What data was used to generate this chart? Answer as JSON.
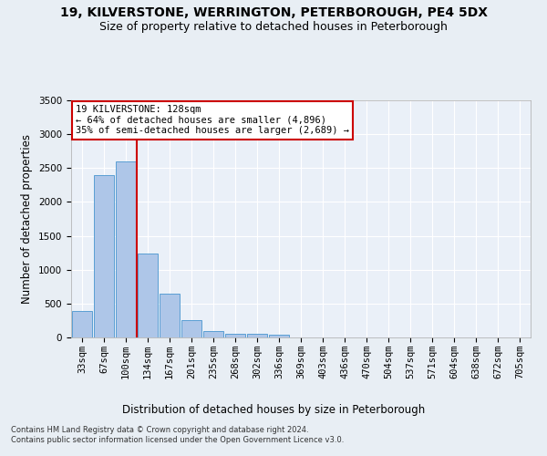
{
  "title_line1": "19, KILVERSTONE, WERRINGTON, PETERBOROUGH, PE4 5DX",
  "title_line2": "Size of property relative to detached houses in Peterborough",
  "xlabel": "Distribution of detached houses by size in Peterborough",
  "ylabel": "Number of detached properties",
  "footnote": "Contains HM Land Registry data © Crown copyright and database right 2024.\nContains public sector information licensed under the Open Government Licence v3.0.",
  "categories": [
    "33sqm",
    "67sqm",
    "100sqm",
    "134sqm",
    "167sqm",
    "201sqm",
    "235sqm",
    "268sqm",
    "302sqm",
    "336sqm",
    "369sqm",
    "403sqm",
    "436sqm",
    "470sqm",
    "504sqm",
    "537sqm",
    "571sqm",
    "604sqm",
    "638sqm",
    "672sqm",
    "705sqm"
  ],
  "values": [
    390,
    2400,
    2600,
    1240,
    640,
    260,
    95,
    60,
    55,
    40,
    0,
    0,
    0,
    0,
    0,
    0,
    0,
    0,
    0,
    0,
    0
  ],
  "bar_color": "#aec6e8",
  "bar_edge_color": "#5a9fd4",
  "vline_x_idx": 3,
  "vline_color": "#cc0000",
  "annotation_text": "19 KILVERSTONE: 128sqm\n← 64% of detached houses are smaller (4,896)\n35% of semi-detached houses are larger (2,689) →",
  "annotation_box_color": "#ffffff",
  "annotation_box_edge": "#cc0000",
  "ylim": [
    0,
    3500
  ],
  "yticks": [
    0,
    500,
    1000,
    1500,
    2000,
    2500,
    3000,
    3500
  ],
  "bg_color": "#e8eef4",
  "plot_bg_color": "#eaf0f8",
  "grid_color": "#ffffff",
  "title_fontsize": 10,
  "subtitle_fontsize": 9,
  "axis_label_fontsize": 8.5,
  "tick_fontsize": 7.5,
  "footnote_fontsize": 6,
  "annotation_fontsize": 7.5
}
